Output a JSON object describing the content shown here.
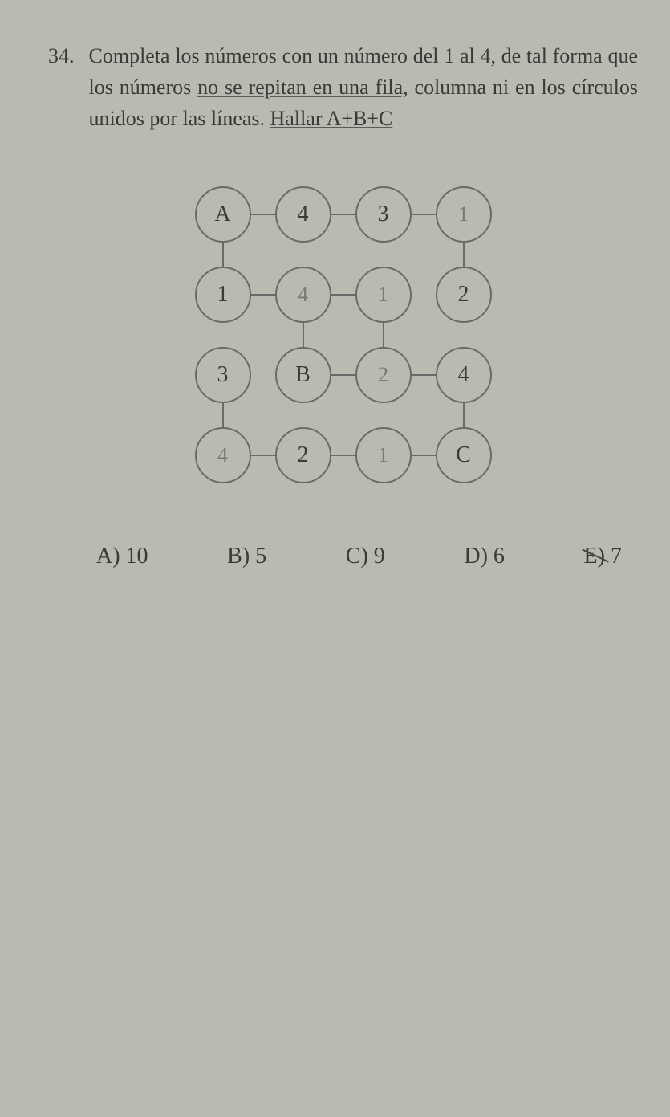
{
  "question": {
    "number": "34.",
    "text_plain_1": "Completa los números con un número del 1 al 4, de tal forma que los números ",
    "underlined_1": "no se repitan en una fila,",
    "text_plain_2": " columna ni en los círculos unidos por las líneas. ",
    "underlined_2": "Hallar A+B+C"
  },
  "grid": {
    "cell_size": 100,
    "circle_size": 70,
    "cells": [
      {
        "r": 0,
        "c": 0,
        "val": "A",
        "hand": false
      },
      {
        "r": 0,
        "c": 1,
        "val": "4",
        "hand": false
      },
      {
        "r": 0,
        "c": 2,
        "val": "3",
        "hand": false
      },
      {
        "r": 0,
        "c": 3,
        "val": "1",
        "hand": true
      },
      {
        "r": 1,
        "c": 0,
        "val": "1",
        "hand": false
      },
      {
        "r": 1,
        "c": 1,
        "val": "4",
        "hand": true
      },
      {
        "r": 1,
        "c": 2,
        "val": "1",
        "hand": true
      },
      {
        "r": 1,
        "c": 3,
        "val": "2",
        "hand": false
      },
      {
        "r": 2,
        "c": 0,
        "val": "3",
        "hand": false
      },
      {
        "r": 2,
        "c": 1,
        "val": "B",
        "hand": false
      },
      {
        "r": 2,
        "c": 2,
        "val": "2",
        "hand": true
      },
      {
        "r": 2,
        "c": 3,
        "val": "4",
        "hand": false
      },
      {
        "r": 3,
        "c": 0,
        "val": "4",
        "hand": true
      },
      {
        "r": 3,
        "c": 1,
        "val": "2",
        "hand": false
      },
      {
        "r": 3,
        "c": 2,
        "val": "1",
        "hand": true
      },
      {
        "r": 3,
        "c": 3,
        "val": "C",
        "hand": false
      }
    ],
    "hlines": [
      {
        "r": 0,
        "c0": 0,
        "c1": 1
      },
      {
        "r": 0,
        "c0": 1,
        "c1": 2
      },
      {
        "r": 0,
        "c0": 2,
        "c1": 3
      },
      {
        "r": 1,
        "c0": 0,
        "c1": 1
      },
      {
        "r": 1,
        "c0": 1,
        "c1": 2
      },
      {
        "r": 2,
        "c0": 1,
        "c1": 2
      },
      {
        "r": 2,
        "c0": 2,
        "c1": 3
      },
      {
        "r": 3,
        "c0": 0,
        "c1": 1
      },
      {
        "r": 3,
        "c0": 1,
        "c1": 2
      },
      {
        "r": 3,
        "c0": 2,
        "c1": 3
      }
    ],
    "vlines": [
      {
        "c": 0,
        "r0": 0,
        "r1": 1
      },
      {
        "c": 0,
        "r0": 2,
        "r1": 3
      },
      {
        "c": 1,
        "r0": 1,
        "r1": 2
      },
      {
        "c": 2,
        "r0": 1,
        "r1": 2
      },
      {
        "c": 3,
        "r0": 0,
        "r1": 1
      },
      {
        "c": 3,
        "r0": 2,
        "r1": 3
      }
    ]
  },
  "options": {
    "a": "A) 10",
    "b": "B) 5",
    "c": "C) 9",
    "d": "D) 6",
    "e": "E) 7"
  }
}
